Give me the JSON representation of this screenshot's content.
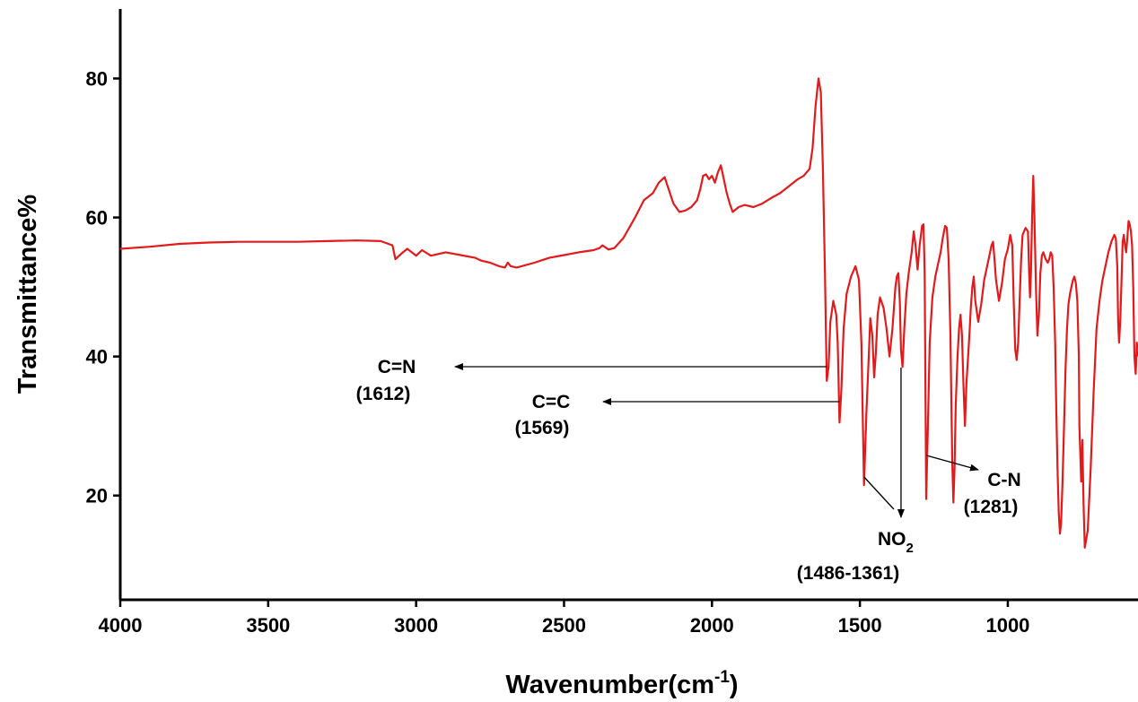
{
  "chart_data": {
    "type": "line",
    "xlabel": "Wavenumber(cm",
    "xlabel_sup": "-1",
    "xlabel_close": ")",
    "ylabel": "Transmittance%",
    "xlim": [
      4000,
      560
    ],
    "ylim": [
      5,
      90
    ],
    "x_ticks": [
      4000,
      3500,
      3000,
      2500,
      2000,
      1500,
      1000
    ],
    "y_ticks": [
      20,
      40,
      60,
      80
    ],
    "grid": false,
    "line_color": "#e31a1c",
    "series": [
      {
        "x": [
          4000,
          3900,
          3800,
          3700,
          3600,
          3500,
          3400,
          3300,
          3200,
          3120,
          3080,
          3070,
          3050,
          3030,
          3000,
          2980,
          2950,
          2900,
          2850,
          2800,
          2780,
          2750,
          2720,
          2700,
          2690,
          2680,
          2660,
          2600,
          2550,
          2500,
          2450,
          2400,
          2380,
          2370,
          2350,
          2330,
          2300,
          2260,
          2230,
          2200,
          2180,
          2160,
          2150,
          2130,
          2110,
          2090,
          2070,
          2050,
          2040,
          2030,
          2020,
          2010,
          2000,
          1990,
          1980,
          1970,
          1960,
          1950,
          1940,
          1930,
          1910,
          1890,
          1860,
          1830,
          1800,
          1770,
          1740,
          1710,
          1690,
          1670,
          1660,
          1650,
          1640,
          1632,
          1625,
          1618,
          1612,
          1606,
          1600,
          1590,
          1580,
          1575,
          1569,
          1563,
          1555,
          1545,
          1530,
          1515,
          1503,
          1495,
          1486,
          1478,
          1470,
          1465,
          1458,
          1452,
          1446,
          1440,
          1432,
          1420,
          1410,
          1400,
          1390,
          1380,
          1375,
          1370,
          1365,
          1361,
          1356,
          1350,
          1343,
          1335,
          1325,
          1318,
          1312,
          1305,
          1298,
          1290,
          1285,
          1281,
          1276,
          1270,
          1264,
          1255,
          1245,
          1235,
          1227,
          1220,
          1212,
          1206,
          1200,
          1194,
          1188,
          1184,
          1180,
          1176,
          1170,
          1165,
          1160,
          1155,
          1150,
          1145,
          1140,
          1130,
          1125,
          1120,
          1115,
          1110,
          1100,
          1090,
          1080,
          1070,
          1060,
          1055,
          1050,
          1045,
          1040,
          1030,
          1020,
          1010,
          1000,
          992,
          985,
          980,
          975,
          970,
          965,
          960,
          955,
          950,
          940,
          932,
          928,
          925,
          922,
          918,
          914,
          910,
          905,
          900,
          895,
          890,
          885,
          880,
          872,
          865,
          860,
          855,
          850,
          845,
          840,
          836,
          832,
          828,
          824,
          820,
          815,
          810,
          805,
          800,
          795,
          790,
          785,
          780,
          775,
          770,
          765,
          760,
          758,
          755,
          752,
          748,
          744,
          740,
          730,
          720,
          710,
          700,
          690,
          680,
          670,
          660,
          650,
          640,
          635,
          630,
          627,
          624,
          620,
          615,
          612,
          608,
          604,
          600,
          596,
          592,
          588,
          584,
          580,
          576,
          572,
          568,
          564,
          560
        ],
        "y": [
          55.5,
          55.8,
          56.2,
          56.4,
          56.5,
          56.5,
          56.5,
          56.6,
          56.7,
          56.6,
          56.0,
          54.0,
          54.8,
          55.5,
          54.5,
          55.3,
          54.5,
          55.0,
          54.6,
          54.2,
          53.8,
          53.5,
          53.0,
          52.8,
          53.5,
          53.0,
          52.8,
          53.5,
          54.2,
          54.6,
          55.0,
          55.3,
          55.6,
          56.0,
          55.4,
          55.6,
          57.0,
          60.0,
          62.5,
          63.5,
          65.0,
          65.8,
          64.5,
          62.0,
          60.8,
          61.0,
          61.5,
          62.5,
          64.0,
          66.0,
          66.2,
          65.5,
          66.0,
          65.0,
          66.5,
          67.5,
          65.5,
          63.5,
          62.0,
          60.8,
          61.5,
          61.8,
          61.5,
          62.0,
          62.8,
          63.5,
          64.5,
          65.5,
          66.0,
          67.0,
          70.0,
          76.0,
          80.0,
          78.0,
          67.0,
          52.0,
          36.5,
          38.5,
          45.0,
          48.0,
          46.0,
          42.0,
          30.5,
          35.0,
          44.0,
          49.0,
          51.5,
          53.0,
          51.0,
          42.0,
          21.5,
          32.0,
          40.0,
          45.5,
          43.0,
          37.0,
          40.5,
          46.0,
          48.5,
          47.0,
          44.0,
          40.0,
          44.0,
          50.0,
          51.5,
          52.0,
          48.0,
          41.0,
          38.5,
          44.0,
          49.0,
          52.0,
          55.0,
          58.0,
          56.0,
          52.5,
          56.0,
          58.8,
          59.0,
          52.0,
          19.5,
          30.0,
          42.0,
          48.5,
          51.5,
          53.5,
          55.0,
          57.0,
          58.8,
          58.5,
          54.0,
          43.0,
          25.0,
          19.0,
          24.0,
          33.0,
          40.0,
          44.0,
          46.0,
          43.0,
          36.0,
          30.0,
          36.0,
          43.0,
          47.0,
          50.0,
          51.5,
          48.0,
          45.0,
          47.5,
          51.0,
          53.0,
          55.0,
          56.0,
          56.5,
          54.0,
          51.0,
          48.0,
          50.5,
          54.0,
          55.5,
          57.5,
          56.0,
          48.0,
          41.0,
          39.5,
          42.0,
          48.0,
          54.0,
          57.5,
          58.5,
          58.0,
          52.0,
          48.5,
          52.0,
          60.0,
          66.0,
          60.0,
          50.0,
          43.0,
          46.0,
          52.0,
          54.5,
          55.0,
          54.0,
          53.5,
          54.0,
          55.0,
          54.5,
          50.0,
          42.0,
          32.0,
          24.0,
          17.5,
          14.5,
          16.0,
          22.0,
          30.0,
          38.0,
          44.0,
          47.5,
          49.0,
          50.0,
          51.0,
          51.5,
          50.5,
          48.0,
          40.0,
          30.0,
          26.0,
          22.0,
          28.0,
          19.0,
          12.5,
          15.0,
          24.0,
          35.0,
          44.0,
          48.0,
          51.0,
          53.0,
          55.0,
          56.5,
          57.5,
          57.0,
          53.0,
          45.0,
          42.0,
          45.0,
          52.0,
          56.5,
          57.5,
          56.0,
          55.0,
          57.0,
          59.5,
          59.0,
          58.0,
          56.0,
          50.0,
          40.0,
          37.5,
          42.0,
          40.0
        ]
      }
    ]
  },
  "annotations": [
    {
      "label": "C=N",
      "value": "(1612)"
    },
    {
      "label": "C=C",
      "value": "(1569)"
    },
    {
      "label": "NO",
      "sub": "2",
      "value": "(1486-1361)"
    },
    {
      "label": "C-N",
      "value": "(1281)"
    }
  ]
}
